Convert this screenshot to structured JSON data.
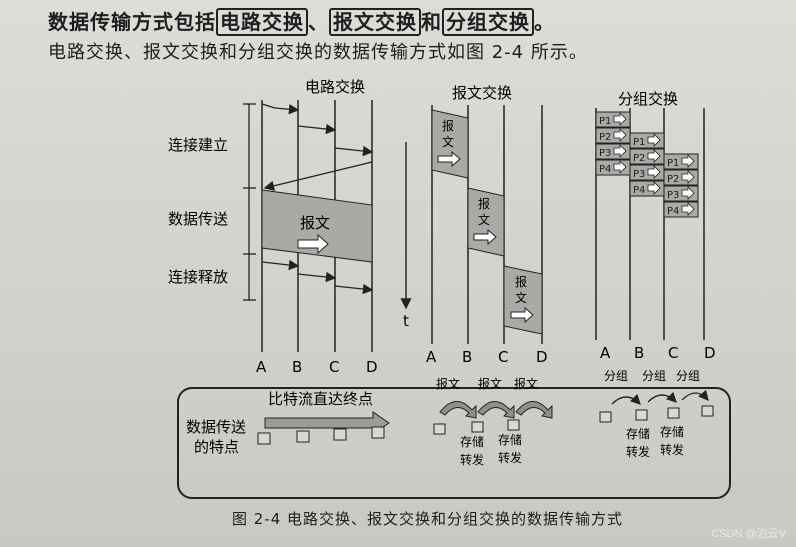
{
  "heading": {
    "prefix": "数据传输方式包括",
    "item1": "电路交换",
    "sep": "、",
    "item2": "报文交换",
    "and": "和",
    "item3": "分组交换",
    "end": "。"
  },
  "intro": "电路交换、报文交换和分组交换的数据传输方式如图 2-4 所示。",
  "figure": {
    "circuit_title": "电路交换",
    "message_title": "报文交换",
    "packet_title": "分组交换",
    "phase_connect": "连接建立",
    "phase_transfer": "数据传送",
    "phase_release": "连接释放",
    "message_label": "报文",
    "time_axis": "t",
    "nodes": [
      "A",
      "B",
      "C",
      "D"
    ],
    "msg_block": "报\n文",
    "packets": [
      "P1",
      "P2",
      "P3",
      "P4"
    ],
    "features_title_line1": "数据传送",
    "features_title_line2": "的特点",
    "bitstream_label": "比特流直达终点",
    "msg_labels": [
      "报文",
      "报文",
      "报文"
    ],
    "store_forward": "存储\n转发",
    "pkt_labels": [
      "分组",
      "分组",
      "分组"
    ]
  },
  "caption": "图 2-4    电路交换、报文交换和分组交换的数据传输方式",
  "watermark": "CSDN @泊云V"
}
